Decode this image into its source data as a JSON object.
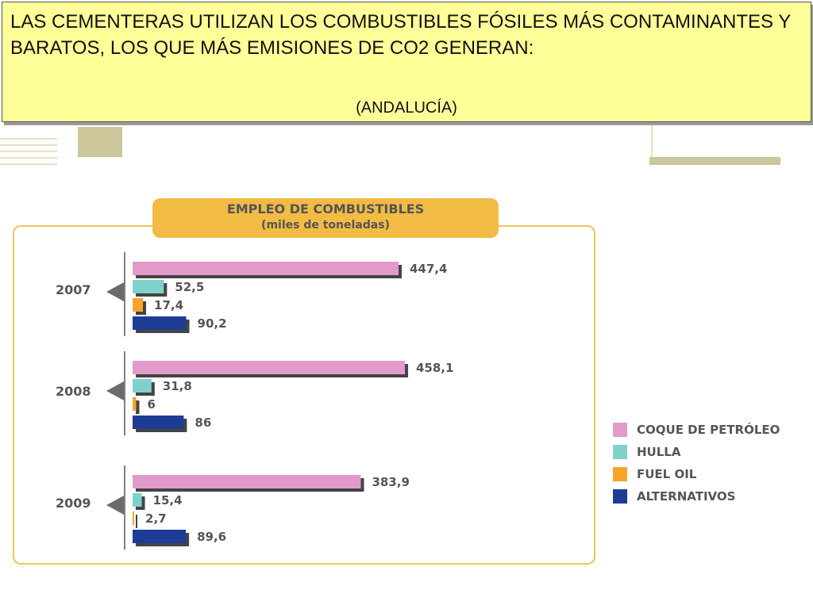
{
  "header": {
    "title": "LAS CEMENTERAS UTILIZAN LOS COMBUSTIBLES FÓSILES MÁS CONTAMINANTES Y BARATOS, LOS QUE MÁS EMISIONES DE CO2 GENERAN:",
    "region": "(ANDALUCÍA)"
  },
  "colors": {
    "header_bg": "#ffff99",
    "frame": "#f2c45a",
    "title_bg": "#f2bb44",
    "coque": "#e29acb",
    "hulla": "#7fd1cc",
    "fuel": "#f6a52a",
    "alternativos": "#1e3c96"
  },
  "chart_data": {
    "type": "bar",
    "orientation": "horizontal",
    "title": "EMPLEO DE COMBUSTIBLES",
    "subtitle": "(miles de toneladas)",
    "categories": [
      "2007",
      "2008",
      "2009"
    ],
    "series": [
      {
        "name": "COQUE DE PETRÓLEO",
        "color": "#e29acb",
        "values": [
          447.4,
          458.1,
          383.9
        ],
        "labels": [
          "447,4",
          "458,1",
          "383,9"
        ]
      },
      {
        "name": "HULLA",
        "color": "#7fd1cc",
        "values": [
          52.5,
          31.8,
          15.4
        ],
        "labels": [
          "52,5",
          "31,8",
          "15,4"
        ]
      },
      {
        "name": "FUEL OIL",
        "color": "#f6a52a",
        "values": [
          17.4,
          6,
          2.7
        ],
        "labels": [
          "17,4",
          "6",
          "2,7"
        ]
      },
      {
        "name": "ALTERNATIVOS",
        "color": "#1e3c96",
        "values": [
          90.2,
          86,
          89.6
        ],
        "labels": [
          "90,2",
          "86",
          "89,6"
        ]
      }
    ],
    "legend_position": "right",
    "grid": false
  }
}
